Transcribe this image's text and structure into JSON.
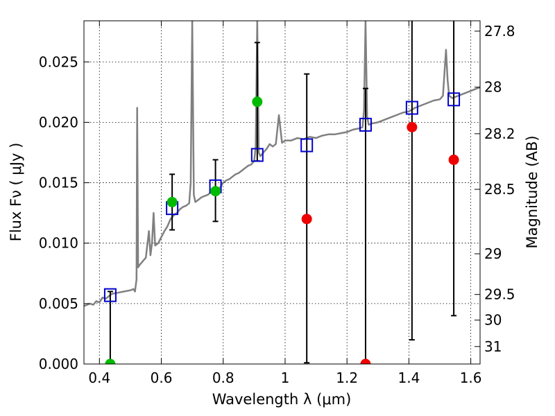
{
  "chart_data": {
    "type": "scatter",
    "xlabel": "Wavelength  λ (μm)",
    "ylabel": "Flux  Fν  ( μJy )",
    "ylabel_right": "Magnitude (AB)",
    "xlim": [
      0.35,
      1.63
    ],
    "ylim": [
      0.0,
      0.0284
    ],
    "grid": true,
    "x_ticks": [
      {
        "value": 0.4,
        "label": "0.4"
      },
      {
        "value": 0.6,
        "label": "0.6"
      },
      {
        "value": 0.8,
        "label": "0.8"
      },
      {
        "value": 1.0,
        "label": "1"
      },
      {
        "value": 1.2,
        "label": "1.2"
      },
      {
        "value": 1.4,
        "label": "1.4"
      },
      {
        "value": 1.6,
        "label": "1.6"
      }
    ],
    "y_ticks": [
      {
        "value": 0.0,
        "label": "0.000"
      },
      {
        "value": 0.005,
        "label": "0.005"
      },
      {
        "value": 0.01,
        "label": "0.010"
      },
      {
        "value": 0.015,
        "label": "0.015"
      },
      {
        "value": 0.02,
        "label": "0.020"
      },
      {
        "value": 0.025,
        "label": "0.025"
      }
    ],
    "right_ticks": [
      {
        "value": 27.8,
        "label": "27.8"
      },
      {
        "value": 28,
        "label": "28"
      },
      {
        "value": 28.2,
        "label": "28.2"
      },
      {
        "value": 28.5,
        "label": "28.5"
      },
      {
        "value": 29,
        "label": "29"
      },
      {
        "value": 29.5,
        "label": "29.5"
      },
      {
        "value": 30,
        "label": "30"
      },
      {
        "value": 31,
        "label": "31"
      }
    ],
    "model_spectrum": {
      "color": "#808080",
      "points": [
        [
          0.35,
          0.0048
        ],
        [
          0.37,
          0.005
        ],
        [
          0.38,
          0.0049
        ],
        [
          0.39,
          0.0052
        ],
        [
          0.4,
          0.0051
        ],
        [
          0.41,
          0.0055
        ],
        [
          0.42,
          0.0054
        ],
        [
          0.43,
          0.0056
        ],
        [
          0.44,
          0.0058
        ],
        [
          0.46,
          0.0059
        ],
        [
          0.48,
          0.006
        ],
        [
          0.5,
          0.0061
        ],
        [
          0.51,
          0.0062
        ],
        [
          0.515,
          0.006
        ],
        [
          0.52,
          0.007
        ],
        [
          0.522,
          0.0212
        ],
        [
          0.525,
          0.008
        ],
        [
          0.53,
          0.0082
        ],
        [
          0.54,
          0.0085
        ],
        [
          0.55,
          0.0088
        ],
        [
          0.56,
          0.011
        ],
        [
          0.565,
          0.009
        ],
        [
          0.57,
          0.01
        ],
        [
          0.575,
          0.0125
        ],
        [
          0.58,
          0.0098
        ],
        [
          0.59,
          0.01
        ],
        [
          0.6,
          0.0105
        ],
        [
          0.61,
          0.011
        ],
        [
          0.62,
          0.0114
        ],
        [
          0.63,
          0.012
        ],
        [
          0.64,
          0.0123
        ],
        [
          0.65,
          0.0125
        ],
        [
          0.66,
          0.0128
        ],
        [
          0.67,
          0.013
        ],
        [
          0.68,
          0.0131
        ],
        [
          0.69,
          0.0133
        ],
        [
          0.695,
          0.015
        ],
        [
          0.7,
          0.0284
        ],
        [
          0.705,
          0.014
        ],
        [
          0.71,
          0.0134
        ],
        [
          0.72,
          0.0136
        ],
        [
          0.73,
          0.0138
        ],
        [
          0.74,
          0.0139
        ],
        [
          0.75,
          0.014
        ],
        [
          0.76,
          0.0142
        ],
        [
          0.77,
          0.0143
        ],
        [
          0.78,
          0.0145
        ],
        [
          0.79,
          0.0146
        ],
        [
          0.8,
          0.015
        ],
        [
          0.81,
          0.0152
        ],
        [
          0.82,
          0.0153
        ],
        [
          0.83,
          0.0155
        ],
        [
          0.84,
          0.0157
        ],
        [
          0.85,
          0.0158
        ],
        [
          0.86,
          0.016
        ],
        [
          0.87,
          0.0162
        ],
        [
          0.88,
          0.0164
        ],
        [
          0.89,
          0.0165
        ],
        [
          0.9,
          0.0168
        ],
        [
          0.905,
          0.018
        ],
        [
          0.91,
          0.0284
        ],
        [
          0.915,
          0.0175
        ],
        [
          0.92,
          0.0172
        ],
        [
          0.93,
          0.0175
        ],
        [
          0.94,
          0.0178
        ],
        [
          0.95,
          0.0182
        ],
        [
          0.96,
          0.018
        ],
        [
          0.97,
          0.0182
        ],
        [
          0.98,
          0.0206
        ],
        [
          0.99,
          0.0183
        ],
        [
          1.0,
          0.0185
        ],
        [
          1.02,
          0.0185
        ],
        [
          1.04,
          0.0187
        ],
        [
          1.06,
          0.0186
        ],
        [
          1.08,
          0.0188
        ],
        [
          1.1,
          0.0187
        ],
        [
          1.12,
          0.0189
        ],
        [
          1.14,
          0.019
        ],
        [
          1.16,
          0.019
        ],
        [
          1.18,
          0.0191
        ],
        [
          1.2,
          0.0192
        ],
        [
          1.22,
          0.0194
        ],
        [
          1.24,
          0.0195
        ],
        [
          1.25,
          0.0196
        ],
        [
          1.255,
          0.021
        ],
        [
          1.26,
          0.0284
        ],
        [
          1.265,
          0.0205
        ],
        [
          1.27,
          0.0198
        ],
        [
          1.28,
          0.0199
        ],
        [
          1.3,
          0.02
        ],
        [
          1.32,
          0.0202
        ],
        [
          1.34,
          0.0204
        ],
        [
          1.36,
          0.0206
        ],
        [
          1.38,
          0.0208
        ],
        [
          1.4,
          0.0209
        ],
        [
          1.42,
          0.0212
        ],
        [
          1.44,
          0.0214
        ],
        [
          1.46,
          0.0216
        ],
        [
          1.48,
          0.0218
        ],
        [
          1.5,
          0.0219
        ],
        [
          1.51,
          0.0222
        ],
        [
          1.52,
          0.026
        ],
        [
          1.525,
          0.0235
        ],
        [
          1.53,
          0.0222
        ],
        [
          1.54,
          0.022
        ],
        [
          1.56,
          0.0222
        ],
        [
          1.58,
          0.0224
        ],
        [
          1.6,
          0.0226
        ],
        [
          1.62,
          0.0228
        ],
        [
          1.63,
          0.0229
        ]
      ]
    },
    "model_photometry": {
      "marker": "open-square",
      "color": "#0000cc",
      "points": [
        [
          0.435,
          0.0057
        ],
        [
          0.635,
          0.0129
        ],
        [
          0.775,
          0.0147
        ],
        [
          0.91,
          0.0173
        ],
        [
          1.07,
          0.0181
        ],
        [
          1.26,
          0.0198
        ],
        [
          1.41,
          0.0212
        ],
        [
          1.545,
          0.0219
        ]
      ]
    },
    "observed_detections": {
      "marker": "filled-circle",
      "color": "#00bb00",
      "points": [
        {
          "x": 0.435,
          "y": 0.0,
          "err_low": 0.0,
          "err_high": 0.006
        },
        {
          "x": 0.635,
          "y": 0.0134,
          "err_low": 0.0111,
          "err_high": 0.0157
        },
        {
          "x": 0.775,
          "y": 0.0143,
          "err_low": 0.0118,
          "err_high": 0.0169
        },
        {
          "x": 0.91,
          "y": 0.0217,
          "err_low": 0.0168,
          "err_high": 0.0266
        }
      ]
    },
    "observed_nondetections": {
      "marker": "filled-circle",
      "color": "#ee0000",
      "points": [
        {
          "x": 1.07,
          "y": 0.012,
          "err_low": 0.0001,
          "err_high": 0.024
        },
        {
          "x": 1.26,
          "y": 0.0,
          "err_low": 0.0,
          "err_high": 0.0228
        },
        {
          "x": 1.41,
          "y": 0.0196,
          "err_low": 0.002,
          "err_high": 0.0284
        },
        {
          "x": 1.545,
          "y": 0.0169,
          "err_low": 0.004,
          "err_high": 0.0284
        }
      ]
    }
  }
}
